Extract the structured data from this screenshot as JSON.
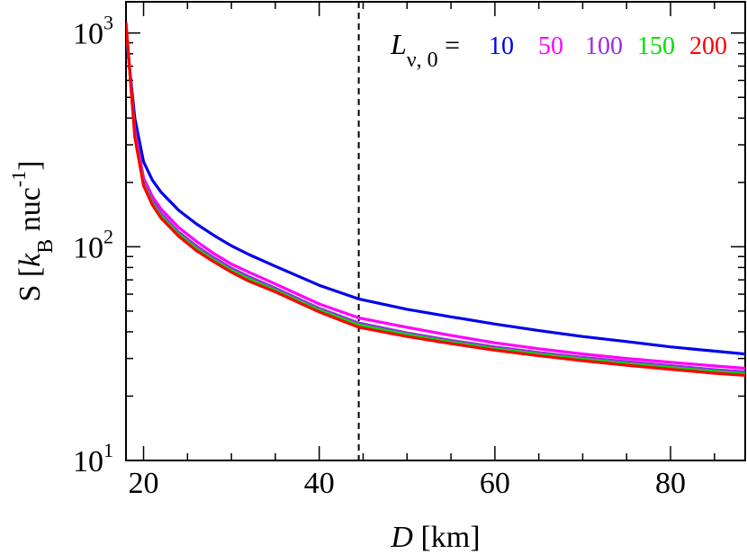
{
  "chart_data": {
    "type": "line",
    "title": "",
    "xlabel": {
      "italic": "D",
      "rest": " [km]"
    },
    "ylabel": {
      "prefix": "S [",
      "italic": "k",
      "subscript": "B",
      "middle": " nuc",
      "superscript": "-1",
      "suffix": "]"
    },
    "x_scale": "linear",
    "y_scale": "log",
    "xlim": [
      18,
      88.5
    ],
    "ylim": [
      10,
      1400
    ],
    "x_ticks": [
      20,
      40,
      60,
      80
    ],
    "x_tick_labels": [
      "20",
      "40",
      "60",
      "80"
    ],
    "y_ticks": [
      {
        "value": 10,
        "base": "10",
        "exp": "1"
      },
      {
        "value": 100,
        "base": "10",
        "exp": "2"
      },
      {
        "value": 1000,
        "base": "10",
        "exp": "3"
      }
    ],
    "vline": {
      "x": 44.5,
      "style": "dashed"
    },
    "legend": {
      "placement": "top-right",
      "label": {
        "italic": "L",
        "subscript": "ν, 0",
        "suffix": " ="
      }
    },
    "x": [
      18,
      19,
      20,
      21,
      22,
      24,
      26,
      28,
      30,
      32,
      35,
      40,
      44.5,
      50,
      55,
      60,
      65,
      70,
      75,
      80,
      85,
      88.5
    ],
    "series": [
      {
        "name": "10",
        "color": "#0000ee",
        "values": [
          1000,
          400,
          250,
          205,
          180,
          148,
          128,
          113,
          101,
          92,
          81,
          66,
          57,
          51,
          47,
          43.5,
          40.5,
          38,
          36,
          34,
          32.5,
          31.5
        ]
      },
      {
        "name": "50",
        "color": "#ff00ff",
        "values": [
          1080,
          350,
          210,
          172,
          150,
          123,
          106,
          93,
          83,
          76,
          67,
          54,
          46.5,
          42,
          38.5,
          35.5,
          33.3,
          31.5,
          30,
          28.8,
          27.7,
          27
        ]
      },
      {
        "name": "100",
        "color": "#9a2ee6",
        "values": [
          1100,
          335,
          200,
          164,
          143,
          117,
          101,
          89,
          79.5,
          72.5,
          64,
          51.5,
          44,
          39.5,
          36.5,
          34,
          32,
          30.4,
          29,
          27.8,
          26.6,
          26
        ]
      },
      {
        "name": "150",
        "color": "#00e000",
        "values": [
          1110,
          330,
          196,
          160,
          139,
          114,
          98,
          86.5,
          77.5,
          70.5,
          62.5,
          50.5,
          43,
          38.8,
          35.8,
          33.3,
          31.4,
          29.8,
          28.4,
          27.2,
          26.1,
          25.4
        ]
      },
      {
        "name": "200",
        "color": "#ff0000",
        "values": [
          1120,
          325,
          193,
          157,
          136,
          112,
          96,
          85,
          76,
          69,
          61.5,
          49.5,
          42,
          38,
          35.2,
          32.8,
          30.9,
          29.3,
          27.9,
          26.7,
          25.6,
          25
        ]
      }
    ]
  }
}
